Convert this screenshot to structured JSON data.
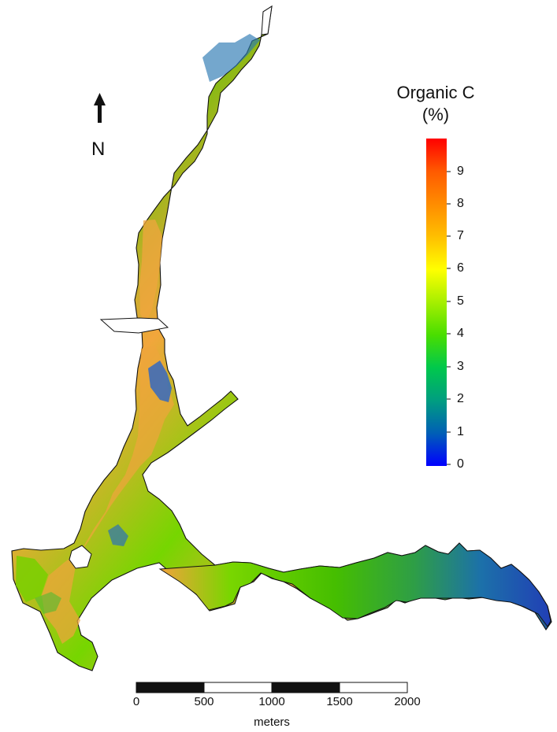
{
  "north_arrow": {
    "label": "N"
  },
  "legend": {
    "title_line1": "Organic C",
    "title_line2": "(%)",
    "labels": [
      "9",
      "8",
      "7",
      "6",
      "5",
      "4",
      "3",
      "2",
      "1",
      "0"
    ],
    "gradient_colors": [
      "#ff0000",
      "#ff5a00",
      "#ff8c00",
      "#ffbf00",
      "#ffff00",
      "#a6ef00",
      "#49de00",
      "#00c84c",
      "#009e80",
      "#005fb6",
      "#0000ff"
    ]
  },
  "scale_bar": {
    "tick_labels": [
      "0",
      "500",
      "1000",
      "1500",
      "2000"
    ],
    "unit": "meters"
  },
  "map_colors": {
    "outline": "#111111",
    "high": "#f2a63c",
    "mid": "#77d000",
    "low": "#2e72b8",
    "deep": "#1f45b0"
  }
}
